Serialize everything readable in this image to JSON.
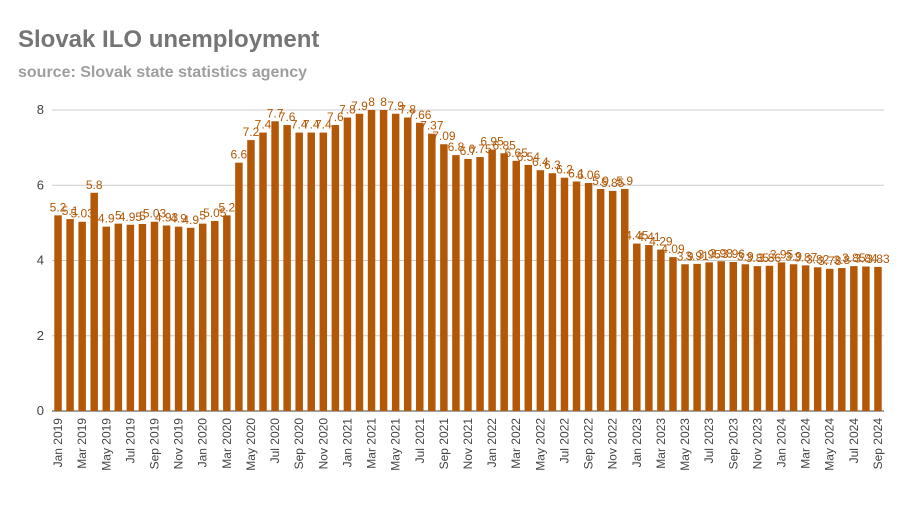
{
  "title": "Slovak ILO unemployment",
  "subtitle": "source: Slovak state statistics agency",
  "colors": {
    "bar": "#b35806",
    "label": "#b35806",
    "grid": "#cccccc",
    "axis": "#444444"
  },
  "chart_data": {
    "type": "bar",
    "ylim": [
      0,
      8
    ],
    "yticks": [
      0,
      2,
      4,
      6,
      8
    ],
    "grid": true,
    "categories": [
      "Jan 2019",
      "Feb 2019",
      "Mar 2019",
      "Apr 2019",
      "May 2019",
      "Jun 2019",
      "Jul 2019",
      "Aug 2019",
      "Sep 2019",
      "Oct 2019",
      "Nov 2019",
      "Dec 2019",
      "Jan 2020",
      "Feb 2020",
      "Mar 2020",
      "Apr 2020",
      "May 2020",
      "Jun 2020",
      "Jul 2020",
      "Aug 2020",
      "Sep 2020",
      "Oct 2020",
      "Nov 2020",
      "Dec 2020",
      "Jan 2021",
      "Feb 2021",
      "Mar 2021",
      "Apr 2021",
      "May 2021",
      "Jun 2021",
      "Jul 2021",
      "Aug 2021",
      "Sep 2021",
      "Oct 2021",
      "Nov 2021",
      "Dec 2021",
      "Jan 2022",
      "Feb 2022",
      "Mar 2022",
      "Apr 2022",
      "May 2022",
      "Jun 2022",
      "Jul 2022",
      "Aug 2022",
      "Sep 2022",
      "Oct 2022",
      "Nov 2022",
      "Dec 2022",
      "Jan 2023",
      "Feb 2023",
      "Mar 2023",
      "Apr 2023",
      "May 2023",
      "Jun 2023",
      "Jul 2023",
      "Aug 2023",
      "Sep 2023",
      "Oct 2023",
      "Nov 2023",
      "Dec 2023",
      "Jan 2024",
      "Feb 2024",
      "Mar 2024",
      "Apr 2024",
      "May 2024",
      "Jun 2024",
      "Jul 2024",
      "Aug 2024",
      "Sep 2024"
    ],
    "xtick_labels": [
      "Jan 2019",
      "Mar 2019",
      "May 2019",
      "Jul 2019",
      "Sep 2019",
      "Nov 2019",
      "Jan 2020",
      "Mar 2020",
      "May 2020",
      "Jul 2020",
      "Sep 2020",
      "Nov 2020",
      "Jan 2021",
      "Mar 2021",
      "May 2021",
      "Jul 2021",
      "Sep 2021",
      "Nov 2021",
      "Jan 2022",
      "Mar 2022",
      "May 2022",
      "Jul 2022",
      "Sep 2022",
      "Nov 2022",
      "Jan 2023",
      "Mar 2023",
      "May 2023",
      "Jul 2023",
      "Sep 2023",
      "Nov 2023",
      "Jan 2024",
      "Mar 2024",
      "May 2024",
      "Jul 2024",
      "Sep 2024"
    ],
    "values": [
      5.2,
      5.1,
      5.03,
      5.8,
      4.9,
      4.98,
      4.95,
      4.97,
      5.03,
      4.93,
      4.9,
      4.87,
      4.98,
      5.05,
      5.2,
      6.6,
      7.2,
      7.4,
      7.7,
      7.6,
      7.4,
      7.4,
      7.4,
      7.6,
      7.8,
      7.9,
      8.0,
      8.0,
      7.9,
      7.8,
      7.66,
      7.37,
      7.09,
      6.8,
      6.7,
      6.75,
      6.95,
      6.85,
      6.65,
      6.54,
      6.4,
      6.32,
      6.2,
      6.1,
      6.06,
      5.9,
      5.85,
      5.9,
      4.45,
      4.41,
      4.29,
      4.09,
      3.9,
      3.91,
      3.95,
      3.98,
      3.96,
      3.9,
      3.85,
      3.86,
      3.95,
      3.9,
      3.87,
      3.82,
      3.78,
      3.8,
      3.85,
      3.84,
      3.83
    ],
    "labels": [
      "5.2",
      "5.1",
      "5.03",
      "5.8",
      "4.9",
      "5",
      "4.95",
      "5",
      "5.03",
      "4.93",
      "4.9",
      "4.9",
      "5",
      "5.05",
      "5.2",
      "6.6",
      "7.2",
      "7.4",
      "7.7",
      "7.6",
      "7.4",
      "7.4",
      "7.4",
      "7.6",
      "7.8",
      "7.9",
      "8",
      "8",
      "7.9",
      "7.8",
      "7.66",
      "7.37",
      "7.09",
      "6.8",
      "6.7",
      "6.75",
      "6.95",
      "6.85",
      "6.65",
      "6.54",
      "6.4",
      "6.3",
      "6.2",
      "6.1",
      "6.06",
      "5.9",
      "5.85",
      "5.9",
      "4.45",
      "4.41",
      "4.29",
      "4.09",
      "3.9",
      "3.91",
      "3.95",
      "3.98",
      "3.96",
      "3.9",
      "3.85",
      "3.86",
      "3.95",
      "3.9",
      "3.87",
      "3.82",
      "3.78",
      "3.8",
      "3.85",
      "3.84",
      "3.83"
    ]
  }
}
